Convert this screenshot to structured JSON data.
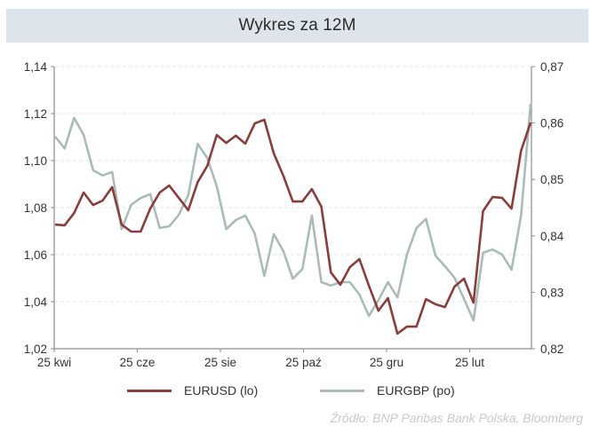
{
  "header": {
    "title": "Wykres za 12M"
  },
  "colors": {
    "eurusd": "#8b3c3b",
    "eurgbp": "#a9bdb5",
    "axis": "#8c8c8c",
    "grid": "#dcdcdc",
    "header_bg": "#dee4ea"
  },
  "axes": {
    "left_ticks": [
      "1,14",
      "1,12",
      "1,10",
      "1,08",
      "1,06",
      "1,04",
      "1,02"
    ],
    "right_ticks": [
      "0,87",
      "0,86",
      "0,85",
      "0,84",
      "0,83",
      "0,82"
    ],
    "x_ticks": [
      "25 kwi",
      "25 cze",
      "25 sie",
      "25 paź",
      "25 gru",
      "25 lut"
    ]
  },
  "legend": {
    "items": [
      {
        "label": "EURUSD (lo)",
        "color": "#8b3c3b"
      },
      {
        "label": "EURGBP (po)",
        "color": "#a9bdb5"
      }
    ]
  },
  "source": {
    "text": "Źródło:  BNP Paribas Bank Polska, Bloomberg"
  },
  "chart_data": {
    "type": "line",
    "title": "Wykres za 12M",
    "xlabel": "",
    "ylabel": "",
    "x_tick_labels": [
      "25 kwi",
      "25 cze",
      "25 sie",
      "25 paź",
      "25 gru",
      "25 lut"
    ],
    "ylim_left": [
      1.02,
      1.14
    ],
    "ylim_right": [
      0.82,
      0.87
    ],
    "grid": true,
    "legend_position": "bottom",
    "series": [
      {
        "name": "EURUSD (lo)",
        "axis": "left",
        "color": "#8b3c3b",
        "values": [
          1.0728,
          1.0725,
          1.0777,
          1.0864,
          1.0811,
          1.083,
          1.0887,
          1.0728,
          1.0698,
          1.0698,
          1.0796,
          1.0864,
          1.0894,
          1.0842,
          1.0789,
          1.0909,
          1.0977,
          1.1109,
          1.1075,
          1.1106,
          1.1072,
          1.1158,
          1.1174,
          1.103,
          1.0936,
          1.0826,
          1.0826,
          1.0879,
          1.0804,
          1.0525,
          1.0472,
          1.0547,
          1.0581,
          1.0468,
          1.0362,
          1.0415,
          1.0264,
          1.0294,
          1.0294,
          1.0411,
          1.0389,
          1.0377,
          1.0464,
          1.0498,
          1.0396,
          1.0785,
          1.0845,
          1.0842,
          1.0796,
          1.1042,
          1.1162
        ]
      },
      {
        "name": "EURGBP (po)",
        "axis": "right",
        "color": "#a9bdb5",
        "values": [
          0.8576,
          0.8555,
          0.8609,
          0.8579,
          0.8516,
          0.8507,
          0.8513,
          0.8412,
          0.8455,
          0.8467,
          0.8474,
          0.8414,
          0.8417,
          0.8437,
          0.8472,
          0.8563,
          0.8538,
          0.8488,
          0.8412,
          0.8428,
          0.8436,
          0.8404,
          0.8329,
          0.8403,
          0.8373,
          0.8324,
          0.8341,
          0.8436,
          0.8318,
          0.8312,
          0.8318,
          0.8318,
          0.8296,
          0.8258,
          0.8286,
          0.8318,
          0.8291,
          0.8367,
          0.8414,
          0.843,
          0.8365,
          0.8346,
          0.8326,
          0.8288,
          0.825,
          0.837,
          0.8376,
          0.8367,
          0.834,
          0.8436,
          0.8634
        ]
      }
    ]
  }
}
